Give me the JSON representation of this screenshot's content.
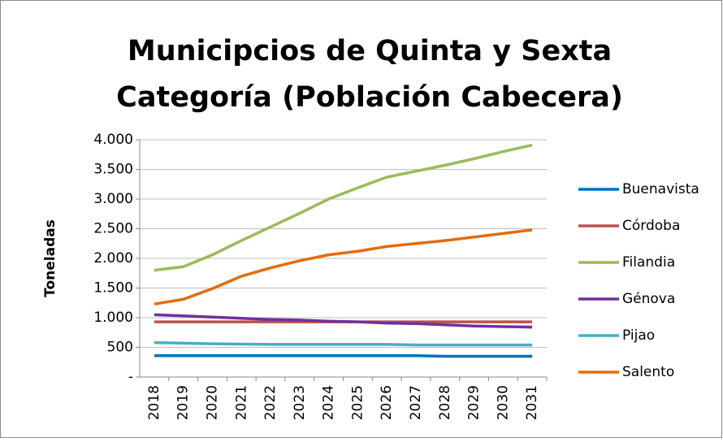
{
  "chart_data": {
    "type": "line",
    "title": [
      "Municipcios de Quinta y Sexta",
      "Categoría (Población Cabecera)"
    ],
    "y_label": "Toneladas",
    "categories": [
      "2018",
      "2019",
      "2020",
      "2021",
      "2022",
      "2023",
      "2024",
      "2025",
      "2026",
      "2027",
      "2028",
      "2029",
      "2030",
      "2031"
    ],
    "series": [
      {
        "name": "Buenavista",
        "color": "#0070c0",
        "values": [
          360,
          360,
          360,
          360,
          360,
          360,
          360,
          360,
          360,
          360,
          350,
          350,
          350,
          350
        ]
      },
      {
        "name": "Córdoba",
        "color": "#c0504d",
        "values": [
          930,
          930,
          930,
          930,
          930,
          930,
          930,
          930,
          930,
          930,
          930,
          930,
          930,
          930
        ]
      },
      {
        "name": "Filandia",
        "color": "#9bbb59",
        "values": [
          1800,
          1860,
          2060,
          2300,
          2530,
          2760,
          3000,
          3190,
          3370,
          3470,
          3570,
          3680,
          3800,
          3910
        ]
      },
      {
        "name": "Génova",
        "color": "#7030a0",
        "values": [
          1050,
          1030,
          1010,
          990,
          970,
          960,
          940,
          930,
          910,
          900,
          880,
          860,
          850,
          840
        ]
      },
      {
        "name": "Pijao",
        "color": "#4bacc6",
        "values": [
          580,
          570,
          560,
          555,
          550,
          550,
          550,
          550,
          550,
          540,
          540,
          540,
          540,
          540
        ]
      },
      {
        "name": "Salento",
        "color": "#e46c0a",
        "values": [
          1230,
          1310,
          1490,
          1700,
          1840,
          1960,
          2060,
          2120,
          2200,
          2250,
          2300,
          2360,
          2420,
          2480
        ]
      }
    ],
    "ylim": [
      0,
      4000
    ],
    "yticks": [
      {
        "value": 0,
        "label": "-"
      },
      500,
      {
        "value": 1000,
        "label": "1.000"
      },
      {
        "value": 1500,
        "label": "1.500"
      },
      {
        "value": 2000,
        "label": "2.000"
      },
      {
        "value": 2500,
        "label": "2.500"
      },
      {
        "value": 3000,
        "label": "3.000"
      },
      {
        "value": 3500,
        "label": "3.500"
      },
      {
        "value": 4000,
        "label": "4.000"
      }
    ],
    "grid": true,
    "legend": "right"
  }
}
